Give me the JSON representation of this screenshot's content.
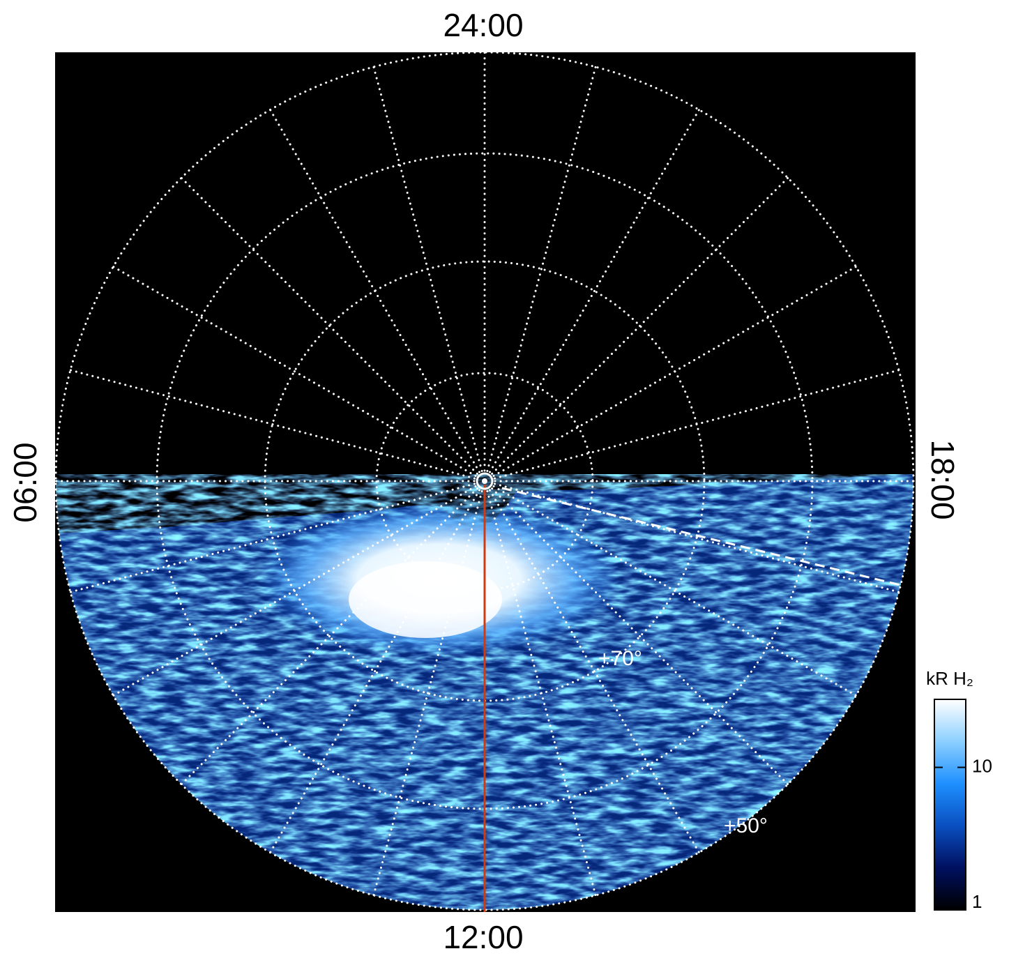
{
  "chart_data": {
    "type": "polar-map",
    "direction_labels": {
      "top": "24:00",
      "left": "06:00",
      "bottom": "12:00",
      "right": "18:00"
    },
    "latitude_labels": [
      "+70°",
      "+50°"
    ],
    "colorbar": {
      "label": "kR H₂",
      "scale": "log",
      "lim": [
        1,
        30
      ],
      "ticks": [
        1,
        10
      ],
      "colormap": [
        "#000000",
        "#001060",
        "#0a4fc0",
        "#1e90ff",
        "#8ccfff",
        "#ffffff"
      ]
    }
  }
}
